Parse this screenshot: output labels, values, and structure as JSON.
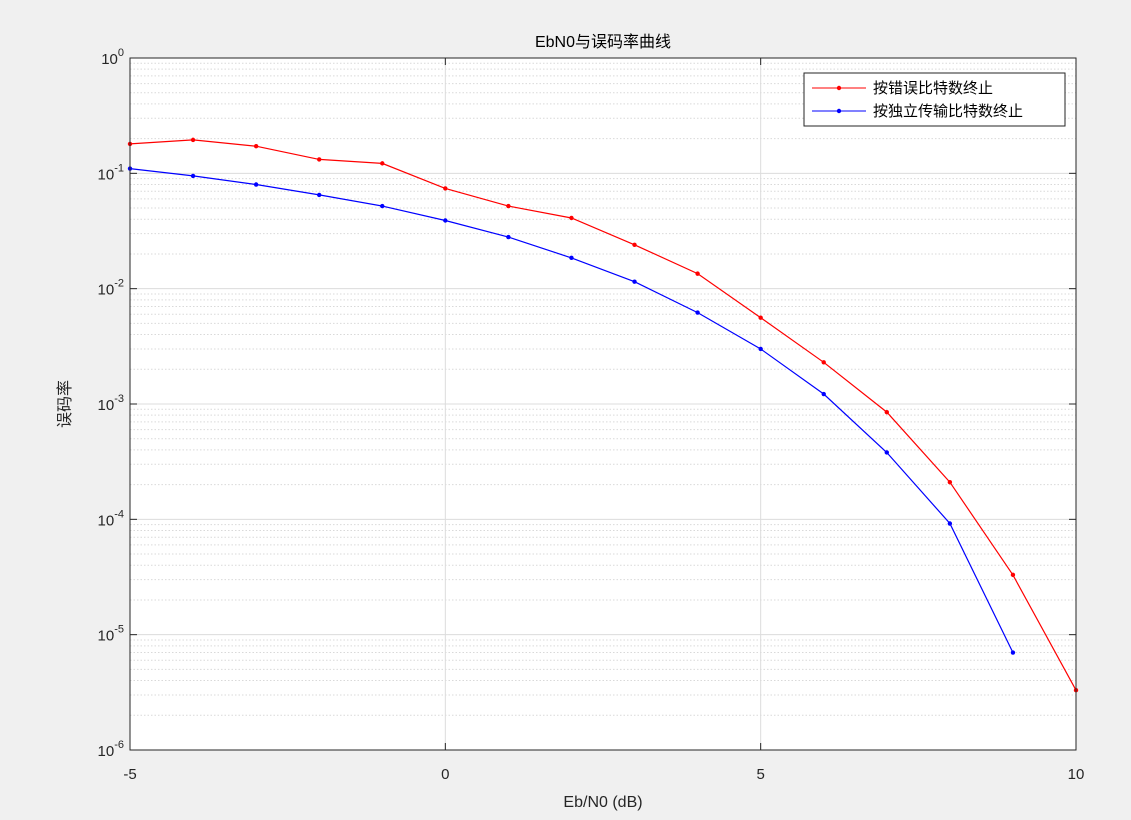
{
  "chart_data": {
    "type": "line",
    "title": "EbN0与误码率曲线",
    "xlabel": "Eb/N0 (dB)",
    "ylabel": "误码率",
    "xlim": [
      -5,
      10
    ],
    "ylim": [
      1e-06,
      1
    ],
    "yscale": "log",
    "grid": true,
    "legend_position": "top-right",
    "x_ticks": [
      -5,
      0,
      5,
      10
    ],
    "x_tick_labels": [
      "-5",
      "0",
      "5",
      "10"
    ],
    "y_ticks": [
      {
        "base": "10",
        "exp": "0"
      },
      {
        "base": "10",
        "exp": "-1"
      },
      {
        "base": "10",
        "exp": "-2"
      },
      {
        "base": "10",
        "exp": "-3"
      },
      {
        "base": "10",
        "exp": "-4"
      },
      {
        "base": "10",
        "exp": "-5"
      },
      {
        "base": "10",
        "exp": "-6"
      }
    ],
    "series": [
      {
        "name": "按错误比特数终止",
        "color": "#ff0000",
        "x": [
          -5,
          -4,
          -3,
          -2,
          -1,
          0,
          1,
          2,
          3,
          4,
          5,
          6,
          7,
          8,
          9,
          10
        ],
        "y": [
          0.18,
          0.195,
          0.172,
          0.132,
          0.122,
          0.074,
          0.052,
          0.041,
          0.024,
          0.0135,
          0.0056,
          0.0023,
          0.00085,
          0.00021,
          3.3e-05,
          3.3e-06
        ]
      },
      {
        "name": "按独立传输比特数终止",
        "color": "#0000ff",
        "x": [
          -5,
          -4,
          -3,
          -2,
          -1,
          0,
          1,
          2,
          3,
          4,
          5,
          6,
          7,
          8,
          9
        ],
        "y": [
          0.11,
          0.095,
          0.08,
          0.065,
          0.052,
          0.039,
          0.028,
          0.0185,
          0.0115,
          0.0062,
          0.003,
          0.00122,
          0.00038,
          9.2e-05,
          7e-06
        ]
      }
    ]
  }
}
